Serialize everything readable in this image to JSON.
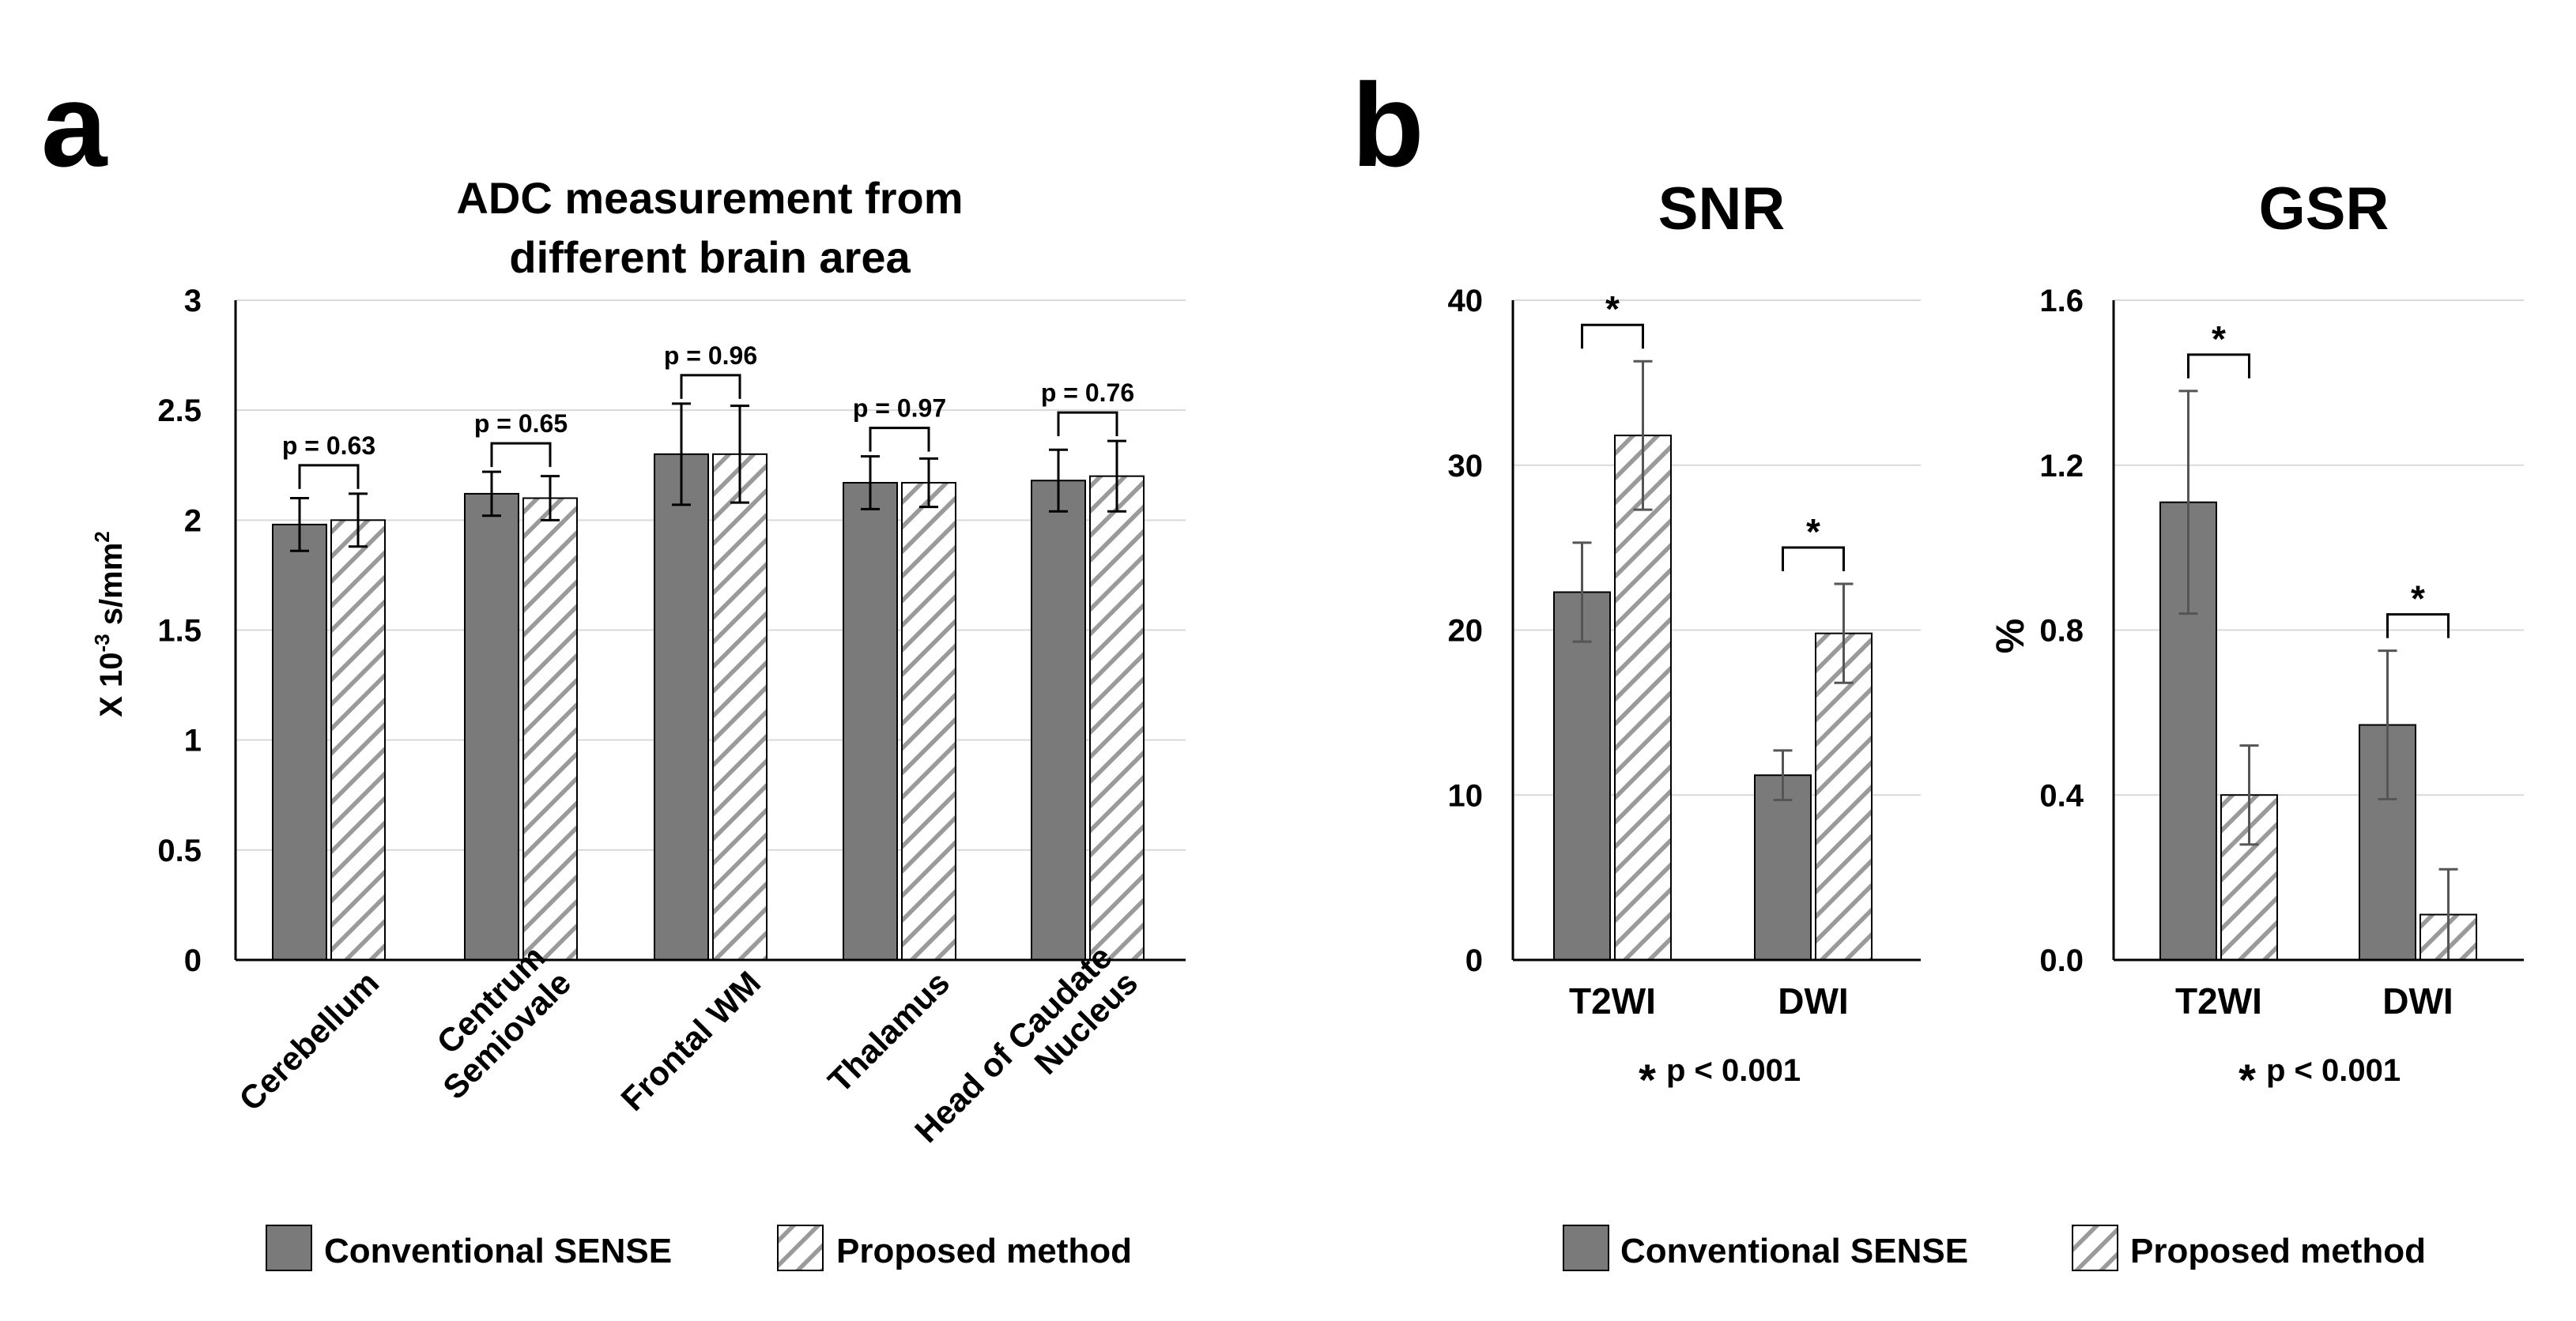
{
  "panels": {
    "a": {
      "label": "a"
    },
    "b": {
      "label": "b"
    }
  },
  "legend": {
    "conventional": "Conventional SENSE",
    "proposed": "Proposed method"
  },
  "colors": {
    "conventional_fill": "#7a7a7a",
    "hatch_line": "#9a9a9a",
    "axis": "#000000",
    "grid": "#d9d9d9"
  },
  "chart_data": [
    {
      "id": "adc",
      "type": "bar",
      "title": "ADC measurement from different brain area",
      "title_lines": [
        "ADC measurement from",
        "different brain area"
      ],
      "ylabel": "X 10⁻³ s/mm²",
      "ylabel_parts": [
        "X 10",
        "-3",
        " s/mm",
        "2"
      ],
      "ylim": [
        0,
        3
      ],
      "yticks": [
        0,
        0.5,
        1,
        1.5,
        2,
        2.5,
        3
      ],
      "ytick_labels": [
        "0",
        "0.5",
        "1",
        "1.5",
        "2",
        "2.5",
        "3"
      ],
      "grid": true,
      "categories": [
        "Cerebellum",
        "Centrum Semiovale",
        "Frontal WM",
        "Thalamus",
        "Head of Caudate Nucleus"
      ],
      "category_lines": [
        [
          "Cerebellum"
        ],
        [
          "Centrum",
          "Semiovale"
        ],
        [
          "Frontal WM"
        ],
        [
          "Thalamus"
        ],
        [
          "Head of Caudate",
          "Nucleus"
        ]
      ],
      "series": [
        {
          "name": "Conventional SENSE",
          "values": [
            1.98,
            2.12,
            2.3,
            2.17,
            2.18
          ],
          "errors": [
            0.12,
            0.1,
            0.23,
            0.12,
            0.14
          ]
        },
        {
          "name": "Proposed method",
          "values": [
            2.0,
            2.1,
            2.3,
            2.17,
            2.2
          ],
          "errors": [
            0.12,
            0.1,
            0.22,
            0.11,
            0.16
          ]
        }
      ],
      "annotations": [
        "p = 0.63",
        "p = 0.65",
        "p = 0.96",
        "p = 0.97",
        "p = 0.76"
      ]
    },
    {
      "id": "snr",
      "type": "bar",
      "title": "SNR",
      "ylabel": "",
      "ylim": [
        0,
        40
      ],
      "yticks": [
        0,
        10,
        20,
        30,
        40
      ],
      "ytick_labels": [
        "0",
        "10",
        "20",
        "30",
        "40"
      ],
      "grid": true,
      "categories": [
        "T2WI",
        "DWI"
      ],
      "series": [
        {
          "name": "Conventional SENSE",
          "values": [
            22.3,
            11.2
          ],
          "errors": [
            3.0,
            1.5
          ]
        },
        {
          "name": "Proposed method",
          "values": [
            31.8,
            19.8
          ],
          "errors": [
            4.5,
            3.0
          ]
        }
      ],
      "annotations": [
        "*",
        "*"
      ],
      "footnote_star": "*",
      "footnote": "p < 0.001"
    },
    {
      "id": "gsr",
      "type": "bar",
      "title": "GSR",
      "ylabel": "%",
      "ylim": [
        0,
        1.6
      ],
      "yticks": [
        0,
        0.4,
        0.8,
        1.2,
        1.6
      ],
      "ytick_labels": [
        "0.0",
        "0.4",
        "0.8",
        "1.2",
        "1.6"
      ],
      "grid": true,
      "categories": [
        "T2WI",
        "DWI"
      ],
      "series": [
        {
          "name": "Conventional SENSE",
          "values": [
            1.11,
            0.57
          ],
          "errors": [
            0.27,
            0.18
          ]
        },
        {
          "name": "Proposed method",
          "values": [
            0.4,
            0.11
          ],
          "errors": [
            0.12,
            0.11
          ]
        }
      ],
      "annotations": [
        "*",
        "*"
      ],
      "footnote_star": "*",
      "footnote": "p < 0.001"
    }
  ]
}
